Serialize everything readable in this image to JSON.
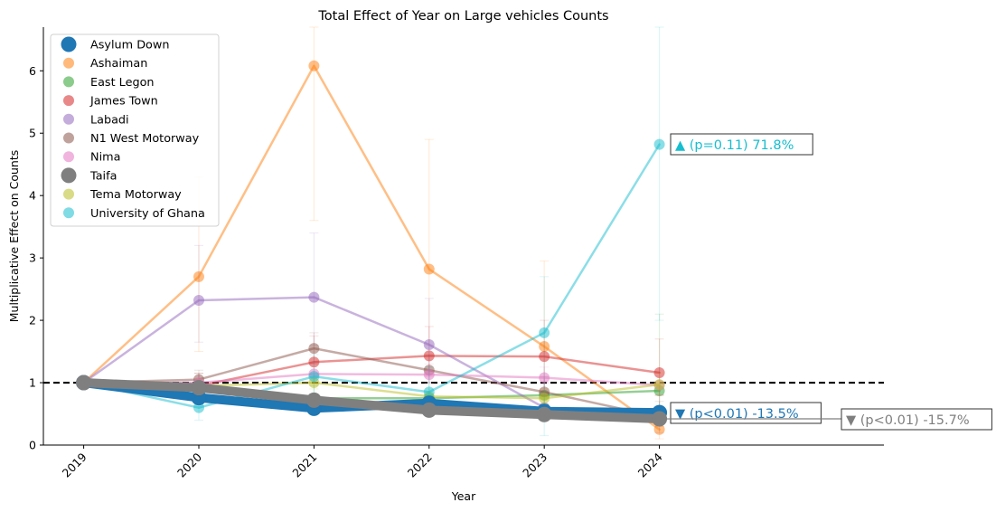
{
  "chart_data": {
    "type": "line",
    "title": "Total Effect of Year on Large vehicles Counts",
    "xlabel": "Year",
    "ylabel": "Multiplicative Effect on Counts",
    "x": [
      "2019",
      "2020",
      "2021",
      "2022",
      "2023",
      "2024"
    ],
    "xlim": [
      2018.65,
      2025.95
    ],
    "ylim": [
      0,
      6.7
    ],
    "yticks": [
      0,
      1,
      2,
      3,
      4,
      5,
      6
    ],
    "reference_line": 1,
    "legend_position": "top-left",
    "series": [
      {
        "name": "Asylum Down",
        "color": "#1f77b4",
        "highlight": true,
        "values": [
          1.0,
          0.76,
          0.59,
          0.67,
          0.54,
          0.52
        ],
        "err_low": [
          1.0,
          0.66,
          0.5,
          0.57,
          0.44,
          0.43
        ],
        "err_high": [
          1.0,
          0.87,
          0.7,
          0.78,
          0.65,
          0.62
        ]
      },
      {
        "name": "Ashaiman",
        "color": "#ff7f0e",
        "highlight": false,
        "values": [
          1.0,
          2.7,
          6.08,
          2.82,
          1.58,
          0.25
        ],
        "err_low": [
          1.0,
          1.5,
          3.6,
          1.6,
          0.9,
          0.1
        ],
        "err_high": [
          1.0,
          4.3,
          6.7,
          4.9,
          2.95,
          1.0
        ]
      },
      {
        "name": "East Legon",
        "color": "#2ca02c",
        "highlight": false,
        "values": [
          1.0,
          0.95,
          0.75,
          0.75,
          0.8,
          0.87
        ],
        "err_low": [
          1.0,
          0.8,
          0.6,
          0.6,
          0.6,
          0.6
        ],
        "err_high": [
          1.0,
          1.15,
          0.95,
          1.0,
          1.1,
          2.1
        ]
      },
      {
        "name": "James Town",
        "color": "#d62728",
        "highlight": false,
        "values": [
          1.0,
          0.95,
          1.33,
          1.43,
          1.42,
          1.16
        ],
        "err_low": [
          1.0,
          0.8,
          1.0,
          1.1,
          1.0,
          0.8
        ],
        "err_high": [
          1.0,
          1.15,
          1.75,
          1.9,
          2.0,
          1.7
        ]
      },
      {
        "name": "Labadi",
        "color": "#9467bd",
        "highlight": false,
        "values": [
          1.0,
          2.32,
          2.37,
          1.61,
          0.6,
          0.4
        ],
        "err_low": [
          1.0,
          1.65,
          1.6,
          1.0,
          0.4,
          0.2
        ],
        "err_high": [
          1.0,
          3.2,
          3.4,
          2.35,
          1.0,
          0.8
        ]
      },
      {
        "name": "N1 West Motorway",
        "color": "#8c564b",
        "highlight": false,
        "values": [
          1.0,
          1.05,
          1.55,
          1.2,
          0.85,
          0.45
        ],
        "err_low": [
          1.0,
          0.9,
          1.3,
          1.0,
          0.65,
          0.3
        ],
        "err_high": [
          1.0,
          1.2,
          1.8,
          1.45,
          1.1,
          0.7
        ]
      },
      {
        "name": "Nima",
        "color": "#e377c2",
        "highlight": false,
        "values": [
          1.0,
          1.0,
          1.14,
          1.13,
          1.08,
          0.96
        ],
        "err_low": [
          1.0,
          0.9,
          1.0,
          1.0,
          0.9,
          0.8
        ],
        "err_high": [
          1.0,
          1.15,
          1.3,
          1.3,
          1.25,
          1.1
        ]
      },
      {
        "name": "Taifa",
        "color": "#7f7f7f",
        "highlight": true,
        "values": [
          1.0,
          0.92,
          0.72,
          0.56,
          0.49,
          0.42
        ],
        "err_low": [
          1.0,
          0.82,
          0.62,
          0.48,
          0.4,
          0.35
        ],
        "err_high": [
          1.0,
          1.02,
          0.82,
          0.66,
          0.58,
          0.5
        ]
      },
      {
        "name": "Tema Motorway",
        "color": "#bcbd22",
        "highlight": false,
        "values": [
          1.0,
          0.95,
          1.0,
          0.78,
          0.75,
          0.97
        ],
        "err_low": [
          1.0,
          0.85,
          0.9,
          0.68,
          0.62,
          0.8
        ],
        "err_high": [
          1.0,
          1.05,
          1.1,
          0.9,
          0.9,
          1.15
        ]
      },
      {
        "name": "University of Ghana",
        "color": "#17becf",
        "highlight": false,
        "values": [
          1.0,
          0.6,
          1.1,
          0.85,
          1.8,
          4.82
        ],
        "err_low": [
          1.0,
          0.4,
          0.8,
          0.55,
          0.15,
          2.0
        ],
        "err_high": [
          1.0,
          0.85,
          1.45,
          1.25,
          2.7,
          6.7
        ]
      }
    ],
    "annotations": [
      {
        "text": "▲ (p=0.11) 71.8%",
        "color": "#17becf",
        "series": "University of Ghana"
      },
      {
        "text": "▼ (p<0.01) -13.5%",
        "color": "#1f77b4",
        "series": "Asylum Down"
      },
      {
        "text": "▼ (p<0.01) -15.7%",
        "color": "#7f7f7f",
        "series": "Taifa"
      }
    ]
  }
}
